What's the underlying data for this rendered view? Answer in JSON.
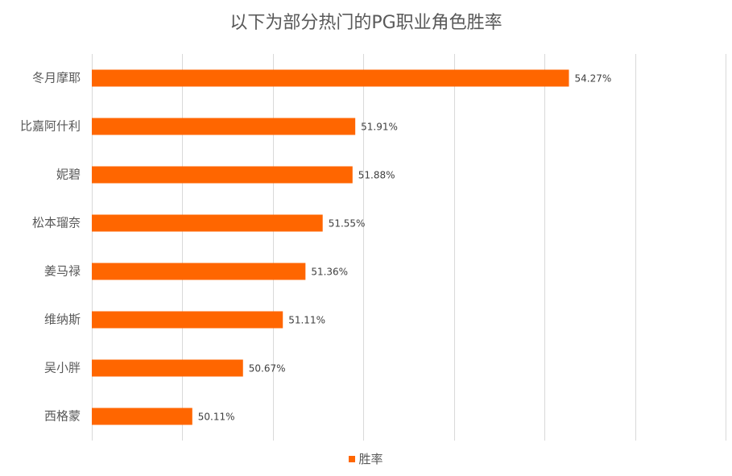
{
  "chart_data": {
    "type": "bar",
    "orientation": "horizontal",
    "title": "以下为部分热门的PG职业角色胜率",
    "categories": [
      "冬月摩耶",
      "比嘉阿什利",
      "妮碧",
      "松本瑠奈",
      "姜马禄",
      "维纳斯",
      "吴小胖",
      "西格蒙"
    ],
    "series": [
      {
        "name": "胜率",
        "values": [
          54.27,
          51.91,
          51.88,
          51.55,
          51.36,
          51.11,
          50.67,
          50.11
        ],
        "labels": [
          "54.27%",
          "51.91%",
          "51.88%",
          "51.55%",
          "51.36%",
          "51.11%",
          "50.67%",
          "50.11%"
        ],
        "color": "#FF6600"
      }
    ],
    "xlim": [
      49,
      56
    ],
    "grid": true,
    "legend_position": "bottom"
  }
}
